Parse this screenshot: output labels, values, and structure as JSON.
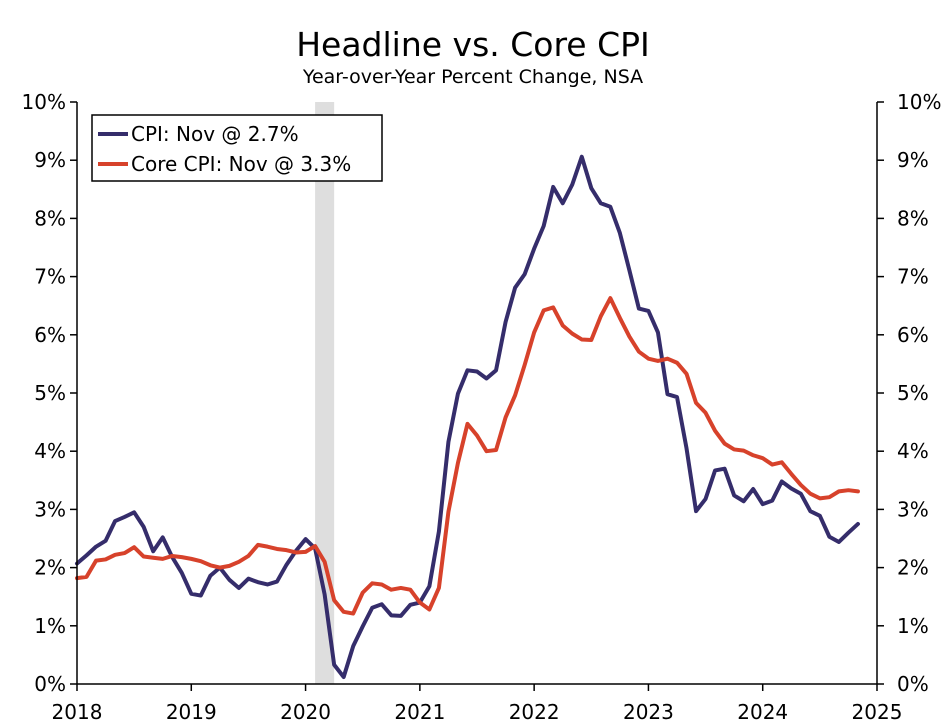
{
  "chart_data": {
    "type": "line",
    "title": "Headline vs. Core CPI",
    "subtitle": "Year-over-Year Percent Change, NSA",
    "xlim": [
      2018.0,
      2025.0
    ],
    "ylim": [
      0,
      10
    ],
    "x_ticks": [
      2018,
      2019,
      2020,
      2021,
      2022,
      2023,
      2024,
      2025
    ],
    "x_tick_labels": [
      "2018",
      "2019",
      "2020",
      "2021",
      "2022",
      "2023",
      "2024",
      "2025"
    ],
    "y_ticks": [
      0,
      1,
      2,
      3,
      4,
      5,
      6,
      7,
      8,
      9,
      10
    ],
    "y_tick_labels": [
      "0%",
      "1%",
      "2%",
      "3%",
      "4%",
      "5%",
      "6%",
      "7%",
      "8%",
      "9%",
      "10%"
    ],
    "grid": false,
    "legend_position": "top-left",
    "recession_band": {
      "start": "2020-02",
      "end": "2020-04",
      "color": "#dedede"
    },
    "x_months": [
      "2018-01",
      "2018-02",
      "2018-03",
      "2018-04",
      "2018-05",
      "2018-06",
      "2018-07",
      "2018-08",
      "2018-09",
      "2018-10",
      "2018-11",
      "2018-12",
      "2019-01",
      "2019-02",
      "2019-03",
      "2019-04",
      "2019-05",
      "2019-06",
      "2019-07",
      "2019-08",
      "2019-09",
      "2019-10",
      "2019-11",
      "2019-12",
      "2020-01",
      "2020-02",
      "2020-03",
      "2020-04",
      "2020-05",
      "2020-06",
      "2020-07",
      "2020-08",
      "2020-09",
      "2020-10",
      "2020-11",
      "2020-12",
      "2021-01",
      "2021-02",
      "2021-03",
      "2021-04",
      "2021-05",
      "2021-06",
      "2021-07",
      "2021-08",
      "2021-09",
      "2021-10",
      "2021-11",
      "2021-12",
      "2022-01",
      "2022-02",
      "2022-03",
      "2022-04",
      "2022-05",
      "2022-06",
      "2022-07",
      "2022-08",
      "2022-09",
      "2022-10",
      "2022-11",
      "2022-12",
      "2023-01",
      "2023-02",
      "2023-03",
      "2023-04",
      "2023-05",
      "2023-06",
      "2023-07",
      "2023-08",
      "2023-09",
      "2023-10",
      "2023-11",
      "2023-12",
      "2024-01",
      "2024-02",
      "2024-03",
      "2024-04",
      "2024-05",
      "2024-06",
      "2024-07",
      "2024-08",
      "2024-09",
      "2024-10",
      "2024-11"
    ],
    "series": [
      {
        "name": "CPI: Nov @ 2.7%",
        "color": "#352d6b",
        "values": [
          2.07,
          2.21,
          2.36,
          2.46,
          2.8,
          2.87,
          2.95,
          2.7,
          2.28,
          2.52,
          2.18,
          1.91,
          1.55,
          1.52,
          1.86,
          2.0,
          1.79,
          1.65,
          1.81,
          1.75,
          1.71,
          1.76,
          2.05,
          2.29,
          2.49,
          2.33,
          1.54,
          0.33,
          0.12,
          0.65,
          0.99,
          1.31,
          1.37,
          1.18,
          1.17,
          1.36,
          1.4,
          1.68,
          2.62,
          4.16,
          4.99,
          5.39,
          5.37,
          5.25,
          5.39,
          6.22,
          6.81,
          7.04,
          7.48,
          7.87,
          8.54,
          8.26,
          8.58,
          9.06,
          8.52,
          8.26,
          8.2,
          7.75,
          7.11,
          6.45,
          6.41,
          6.04,
          4.98,
          4.93,
          4.05,
          2.97,
          3.18,
          3.67,
          3.7,
          3.24,
          3.14,
          3.35,
          3.09,
          3.15,
          3.48,
          3.36,
          3.27,
          2.97,
          2.89,
          2.53,
          2.44,
          2.6,
          2.75
        ]
      },
      {
        "name": "Core CPI: Nov @ 3.3%",
        "color": "#d7422b",
        "values": [
          1.82,
          1.84,
          2.12,
          2.14,
          2.22,
          2.25,
          2.35,
          2.19,
          2.17,
          2.15,
          2.2,
          2.18,
          2.15,
          2.11,
          2.04,
          2.0,
          2.03,
          2.1,
          2.2,
          2.39,
          2.36,
          2.32,
          2.3,
          2.26,
          2.27,
          2.37,
          2.1,
          1.44,
          1.24,
          1.21,
          1.57,
          1.73,
          1.71,
          1.62,
          1.65,
          1.62,
          1.4,
          1.28,
          1.65,
          2.96,
          3.8,
          4.47,
          4.27,
          4.0,
          4.02,
          4.58,
          4.96,
          5.48,
          6.04,
          6.42,
          6.47,
          6.16,
          6.02,
          5.92,
          5.91,
          6.32,
          6.63,
          6.29,
          5.97,
          5.71,
          5.59,
          5.55,
          5.59,
          5.52,
          5.33,
          4.83,
          4.66,
          4.35,
          4.13,
          4.03,
          4.01,
          3.93,
          3.88,
          3.77,
          3.81,
          3.61,
          3.42,
          3.27,
          3.19,
          3.21,
          3.31,
          3.33,
          3.31
        ]
      }
    ]
  }
}
